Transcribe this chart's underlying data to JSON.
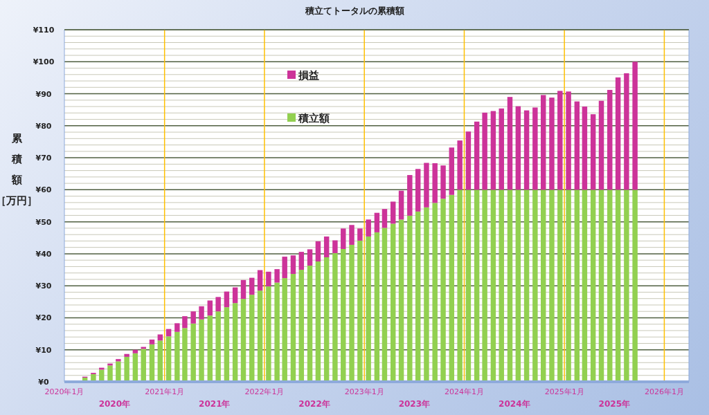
{
  "chart_data": {
    "type": "bar",
    "stacked": true,
    "title": "積立てトータルの累積額",
    "ylabel": "累積額［万円］",
    "x": [
      "2020-03-16",
      "2020-04-16",
      "2020-05-16",
      "2020-06-16",
      "2020-07-16",
      "2020-08-16",
      "2020-09-16",
      "2020-10-16",
      "2020-11-16",
      "2020-12-16",
      "2021-01-16",
      "2021-02-16",
      "2021-03-16",
      "2021-04-16",
      "2021-05-16",
      "2021-06-16",
      "2021-07-16",
      "2021-08-16",
      "2021-09-16",
      "2021-10-16",
      "2021-11-16",
      "2021-12-16",
      "2022-01-16",
      "2022-02-16",
      "2022-03-16",
      "2022-04-16",
      "2022-05-16",
      "2022-06-16",
      "2022-07-16",
      "2022-08-16",
      "2022-09-16",
      "2022-10-16",
      "2022-11-16",
      "2022-12-16",
      "2023-01-16",
      "2023-02-16",
      "2023-03-16",
      "2023-04-16",
      "2023-05-16",
      "2023-06-16",
      "2023-07-16",
      "2023-08-16",
      "2023-09-16",
      "2023-10-16",
      "2023-11-16",
      "2023-12-16",
      "2024-01-16",
      "2024-02-16",
      "2024-03-16",
      "2024-04-16",
      "2024-05-16",
      "2024-06-16",
      "2024-07-16",
      "2024-08-16",
      "2024-09-16",
      "2024-10-16",
      "2024-11-16",
      "2024-12-16",
      "2025-01-16",
      "2025-02-16",
      "2025-03-16",
      "2025-04-16",
      "2025-05-16",
      "2025-06-16",
      "2025-07-16",
      "2025-08-16",
      "2025-09-16"
    ],
    "series": [
      {
        "name": "積立額",
        "color": "#92d050",
        "values": [
          1.3,
          2.4,
          3.8,
          5.1,
          6.4,
          7.8,
          8.9,
          10.3,
          11.7,
          12.9,
          14.2,
          15.6,
          16.8,
          18.2,
          19.5,
          20.7,
          22.0,
          23.3,
          24.6,
          25.9,
          27.2,
          28.5,
          29.8,
          31.0,
          32.4,
          33.7,
          35.0,
          36.3,
          37.6,
          38.9,
          40.2,
          41.5,
          42.8,
          44.1,
          45.4,
          46.7,
          48.1,
          49.4,
          50.7,
          51.9,
          53.2,
          54.5,
          55.9,
          57.2,
          58.4,
          60,
          60,
          60,
          60,
          60,
          60,
          60,
          60,
          60,
          60,
          60,
          60,
          60,
          60,
          60,
          60,
          60,
          60,
          60,
          60,
          60,
          60
        ]
      },
      {
        "name": "損益",
        "color": "#cc3399",
        "values": [
          0.3,
          0.4,
          0.6,
          0.6,
          0.7,
          0.9,
          1.1,
          0.6,
          1.5,
          1.9,
          2.3,
          2.7,
          3.7,
          3.8,
          4.1,
          4.7,
          4.5,
          4.9,
          4.9,
          5.9,
          5.3,
          6.4,
          4.6,
          4.2,
          6.7,
          5.8,
          5.6,
          5.1,
          6.3,
          6.5,
          4.0,
          6.4,
          6.2,
          3.8,
          5.3,
          6.1,
          5.9,
          6.9,
          9.0,
          12.7,
          13.3,
          13.9,
          12.4,
          10.4,
          14.8,
          15.4,
          18.2,
          21.3,
          24.1,
          24.6,
          25.4,
          29.0,
          26.1,
          24.8,
          25.7,
          29.6,
          28.8,
          30.9,
          30.7,
          27.6,
          26.0,
          23.6,
          27.8,
          31.2,
          35.1,
          36.4,
          40.0
        ]
      }
    ],
    "xlim": [
      "2020-01",
      "2026-04"
    ],
    "xticks": [
      {
        "value": "2020-01",
        "label": "2020年1月"
      },
      {
        "value": "2021-01",
        "label": "2021年1月"
      },
      {
        "value": "2022-01",
        "label": "2022年1月"
      },
      {
        "value": "2023-01",
        "label": "2023年1月"
      },
      {
        "value": "2024-01",
        "label": "2024年1月"
      },
      {
        "value": "2025-01",
        "label": "2025年1月"
      },
      {
        "value": "2026-01",
        "label": "2026年1月"
      }
    ],
    "annotations": [
      "2020年",
      "2021年",
      "2022年",
      "2023年",
      "2024年",
      "2025年"
    ],
    "ylim": [
      0,
      110
    ],
    "yticks": [
      {
        "value": 0,
        "label": "¥0"
      },
      {
        "value": 2,
        "label": null
      },
      {
        "value": 4,
        "label": null
      },
      {
        "value": 6,
        "label": null
      },
      {
        "value": 8,
        "label": null
      },
      {
        "value": 10,
        "label": "¥10"
      },
      {
        "value": 12,
        "label": null
      },
      {
        "value": 14,
        "label": null
      },
      {
        "value": 16,
        "label": null
      },
      {
        "value": 18,
        "label": null
      },
      {
        "value": 20,
        "label": "¥20"
      },
      {
        "value": 22,
        "label": null
      },
      {
        "value": 24,
        "label": null
      },
      {
        "value": 26,
        "label": null
      },
      {
        "value": 28,
        "label": null
      },
      {
        "value": 30,
        "label": "¥30"
      },
      {
        "value": 32,
        "label": null
      },
      {
        "value": 34,
        "label": null
      },
      {
        "value": 36,
        "label": null
      },
      {
        "value": 38,
        "label": null
      },
      {
        "value": 40,
        "label": "¥40"
      },
      {
        "value": 42,
        "label": null
      },
      {
        "value": 44,
        "label": null
      },
      {
        "value": 46,
        "label": null
      },
      {
        "value": 48,
        "label": null
      },
      {
        "value": 50,
        "label": "¥50"
      },
      {
        "value": 52,
        "label": null
      },
      {
        "value": 54,
        "label": null
      },
      {
        "value": 56,
        "label": null
      },
      {
        "value": 58,
        "label": null
      },
      {
        "value": 60,
        "label": "¥60"
      },
      {
        "value": 62,
        "label": null
      },
      {
        "value": 64,
        "label": null
      },
      {
        "value": 66,
        "label": null
      },
      {
        "value": 68,
        "label": null
      },
      {
        "value": 70,
        "label": "¥70"
      },
      {
        "value": 72,
        "label": null
      },
      {
        "value": 74,
        "label": null
      },
      {
        "value": 76,
        "label": null
      },
      {
        "value": 78,
        "label": null
      },
      {
        "value": 80,
        "label": "¥80"
      },
      {
        "value": 82,
        "label": null
      },
      {
        "value": 84,
        "label": null
      },
      {
        "value": 86,
        "label": null
      },
      {
        "value": 88,
        "label": null
      },
      {
        "value": 90,
        "label": "¥90"
      },
      {
        "value": 92,
        "label": null
      },
      {
        "value": 94,
        "label": null
      },
      {
        "value": 96,
        "label": null
      },
      {
        "value": 98,
        "label": null
      },
      {
        "value": 100,
        "label": "¥100"
      },
      {
        "value": 102,
        "label": null
      },
      {
        "value": 104,
        "label": null
      },
      {
        "value": 106,
        "label": null
      },
      {
        "value": 108,
        "label": null
      },
      {
        "value": 110,
        "label": "¥110"
      }
    ],
    "grid": "y",
    "legend": "top",
    "ref_lines": [
      {
        "axis": "x",
        "value": "2021-01",
        "color": "#ffc000"
      },
      {
        "axis": "x",
        "value": "2022-01",
        "color": "#ffc000"
      },
      {
        "axis": "x",
        "value": "2023-01",
        "color": "#ffc000"
      },
      {
        "axis": "x",
        "value": "2024-01",
        "color": "#ffc000"
      },
      {
        "axis": "x",
        "value": "2025-01",
        "color": "#ffc000"
      },
      {
        "axis": "x",
        "value": "2026-01",
        "color": "#ffc000"
      }
    ]
  }
}
